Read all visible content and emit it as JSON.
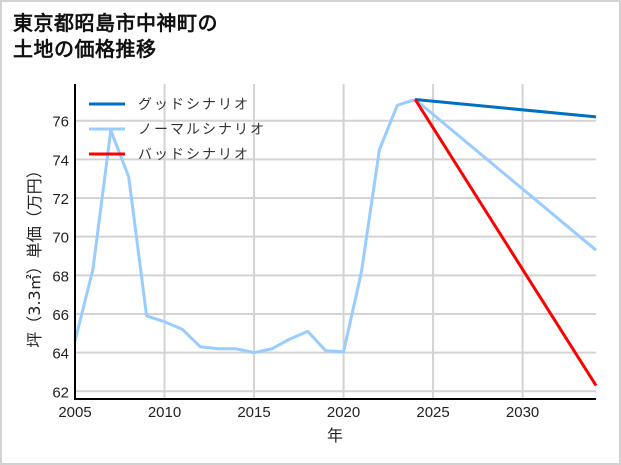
{
  "title_line1": "東京都昭島市中神町の",
  "title_line2": "土地の価格推移",
  "chart_data": {
    "type": "line",
    "title": "東京都昭島市中神町の土地の価格推移",
    "xlabel": "年",
    "ylabel": "坪（3.3㎡）単価（万円）",
    "xlim": [
      2005,
      2034.1
    ],
    "ylim": [
      61.6,
      77.9
    ],
    "xticks": [
      2005,
      2010,
      2015,
      2020,
      2025,
      2030
    ],
    "yticks": [
      62,
      64,
      66,
      68,
      70,
      72,
      74,
      76
    ],
    "grid": true,
    "legend_position": "upper left",
    "series": [
      {
        "name": "グッドシナリオ",
        "color": "#0070c0",
        "x": [
          2024,
          2034.1
        ],
        "values": [
          77.1,
          76.2
        ]
      },
      {
        "name": "ノーマルシナリオ",
        "color": "#99ccff",
        "x": [
          2005,
          2006,
          2007,
          2008,
          2009,
          2010,
          2011,
          2012,
          2013,
          2014,
          2015,
          2016,
          2017,
          2018,
          2019,
          2020,
          2021,
          2022,
          2023,
          2024,
          2034.1
        ],
        "values": [
          64.6,
          68.3,
          75.5,
          73.1,
          65.9,
          65.6,
          65.2,
          64.3,
          64.2,
          64.2,
          64.0,
          64.2,
          64.7,
          65.1,
          64.1,
          64.05,
          68.2,
          74.5,
          76.8,
          77.1,
          69.3
        ]
      },
      {
        "name": "バッドシナリオ",
        "color": "#ff0000",
        "x": [
          2024,
          2034.1
        ],
        "values": [
          77.1,
          62.3
        ]
      }
    ]
  }
}
